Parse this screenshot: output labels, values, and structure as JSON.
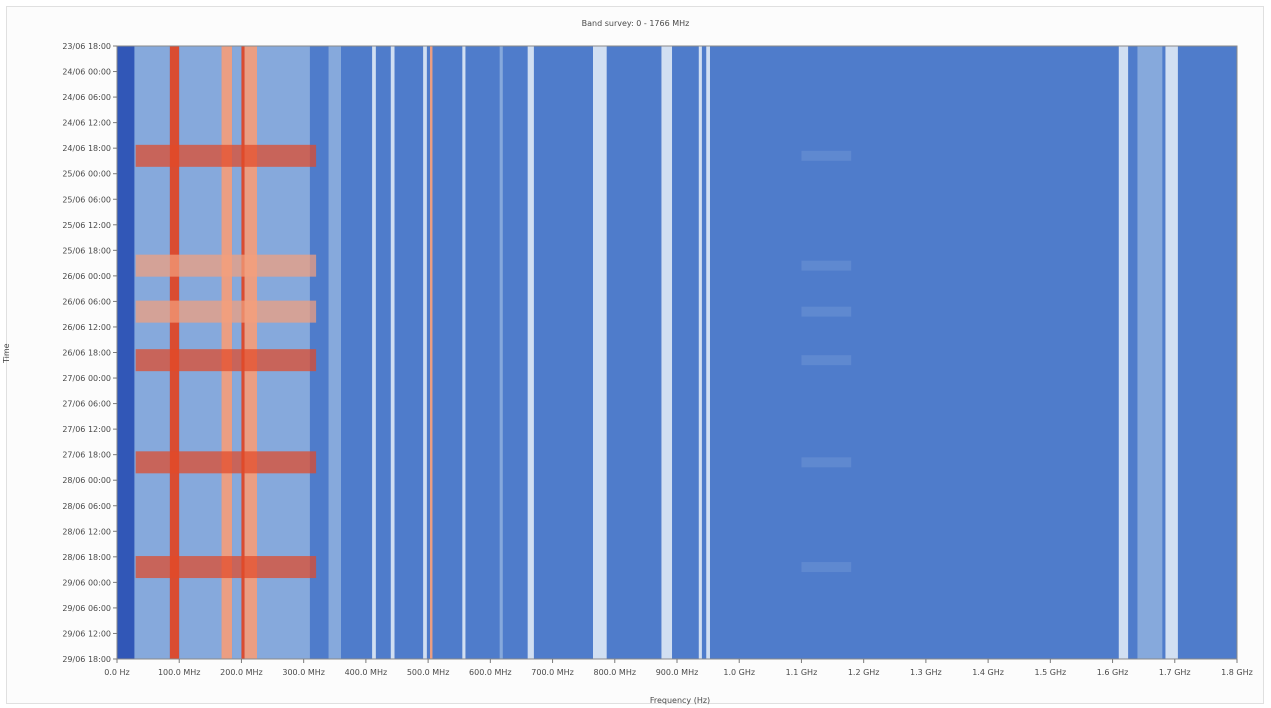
{
  "chart_data": {
    "type": "heatmap",
    "title": "Band survey: 0 - 1766 MHz",
    "xlabel": "Frequency (Hz)",
    "ylabel": "Time",
    "xlim_mhz": [
      0,
      1800
    ],
    "x_tick_values_mhz": [
      0,
      100,
      200,
      300,
      400,
      500,
      600,
      700,
      800,
      900,
      1000,
      1100,
      1200,
      1300,
      1400,
      1500,
      1600,
      1700,
      1800
    ],
    "x_tick_labels": [
      "0.0 Hz",
      "100.0 MHz",
      "200.0 MHz",
      "300.0 MHz",
      "400.0 MHz",
      "500.0 MHz",
      "600.0 MHz",
      "700.0 MHz",
      "800.0 MHz",
      "900.0 MHz",
      "1.0 GHz",
      "1.1 GHz",
      "1.2 GHz",
      "1.3 GHz",
      "1.4 GHz",
      "1.5 GHz",
      "1.6 GHz",
      "1.7 GHz",
      "1.8 GHz"
    ],
    "y_tick_labels": [
      "23/06 18:00",
      "24/06 00:00",
      "24/06 06:00",
      "24/06 12:00",
      "24/06 18:00",
      "25/06 00:00",
      "25/06 06:00",
      "25/06 12:00",
      "25/06 18:00",
      "26/06 00:00",
      "26/06 06:00",
      "26/06 12:00",
      "26/06 18:00",
      "27/06 00:00",
      "27/06 06:00",
      "27/06 12:00",
      "27/06 18:00",
      "28/06 00:00",
      "28/06 06:00",
      "28/06 12:00",
      "28/06 18:00",
      "29/06 00:00",
      "29/06 06:00",
      "29/06 12:00",
      "29/06 18:00"
    ],
    "colors": {
      "background": "#4f7ccb",
      "far_left_band": "#2f55b5",
      "strong": "#e24a28",
      "medium": "#f3a07d",
      "weak": "#d8e5f3",
      "faint": "#8fb1df"
    },
    "frequency_bands_mhz": [
      {
        "start": 0,
        "end": 28,
        "level": "floor"
      },
      {
        "start": 28,
        "end": 85,
        "level": "faint"
      },
      {
        "start": 85,
        "end": 100,
        "level": "strong"
      },
      {
        "start": 100,
        "end": 168,
        "level": "faint"
      },
      {
        "start": 168,
        "end": 185,
        "level": "medium"
      },
      {
        "start": 185,
        "end": 200,
        "level": "faint"
      },
      {
        "start": 200,
        "end": 205,
        "level": "strong"
      },
      {
        "start": 205,
        "end": 225,
        "level": "medium"
      },
      {
        "start": 225,
        "end": 310,
        "level": "faint"
      },
      {
        "start": 340,
        "end": 360,
        "level": "faint"
      },
      {
        "start": 410,
        "end": 416,
        "level": "weak"
      },
      {
        "start": 440,
        "end": 446,
        "level": "weak"
      },
      {
        "start": 492,
        "end": 498,
        "level": "weak"
      },
      {
        "start": 503,
        "end": 507,
        "level": "medium"
      },
      {
        "start": 555,
        "end": 560,
        "level": "weak"
      },
      {
        "start": 615,
        "end": 620,
        "level": "faint"
      },
      {
        "start": 660,
        "end": 670,
        "level": "weak"
      },
      {
        "start": 765,
        "end": 787,
        "level": "weak"
      },
      {
        "start": 875,
        "end": 892,
        "level": "weak"
      },
      {
        "start": 935,
        "end": 940,
        "level": "weak"
      },
      {
        "start": 947,
        "end": 953,
        "level": "weak"
      },
      {
        "start": 1610,
        "end": 1625,
        "level": "weak"
      },
      {
        "start": 1640,
        "end": 1680,
        "level": "faint"
      },
      {
        "start": 1685,
        "end": 1705,
        "level": "weak"
      }
    ],
    "time_bursts": [
      {
        "time_index": 4.3,
        "level": "strong"
      },
      {
        "time_index": 8.6,
        "level": "medium"
      },
      {
        "time_index": 10.4,
        "level": "medium"
      },
      {
        "time_index": 12.3,
        "level": "strong"
      },
      {
        "time_index": 16.3,
        "level": "strong"
      },
      {
        "time_index": 20.4,
        "level": "strong"
      }
    ],
    "grid": false,
    "legend": "none"
  }
}
